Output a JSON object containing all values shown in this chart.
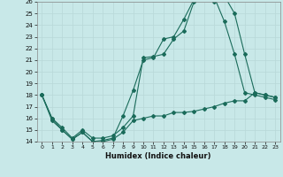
{
  "xlabel": "Humidex (Indice chaleur)",
  "xlim": [
    -0.5,
    23.5
  ],
  "ylim": [
    14,
    26
  ],
  "yticks": [
    14,
    15,
    16,
    17,
    18,
    19,
    20,
    21,
    22,
    23,
    24,
    25,
    26
  ],
  "xticks": [
    0,
    1,
    2,
    3,
    4,
    5,
    6,
    7,
    8,
    9,
    10,
    11,
    12,
    13,
    14,
    15,
    16,
    17,
    18,
    19,
    20,
    21,
    22,
    23
  ],
  "bg_color": "#c8e8e8",
  "line_color": "#1a6b5a",
  "grid_color": "#b8d8d8",
  "line1_x": [
    0,
    1,
    2,
    3,
    4,
    5,
    6,
    7,
    8,
    9,
    10,
    11,
    12,
    13,
    14,
    15,
    16,
    17,
    18,
    19,
    20,
    21,
    22,
    23
  ],
  "line1_y": [
    18.0,
    16.0,
    15.0,
    14.2,
    14.8,
    14.0,
    14.1,
    14.3,
    16.2,
    18.4,
    21.0,
    21.2,
    22.8,
    23.0,
    24.5,
    26.2,
    26.2,
    26.0,
    26.5,
    25.0,
    21.5,
    18.2,
    18.0,
    17.8
  ],
  "line2_x": [
    0,
    1,
    2,
    3,
    4,
    5,
    6,
    7,
    8,
    9,
    10,
    11,
    12,
    13,
    14,
    15,
    16,
    17,
    18,
    19,
    20,
    21,
    22,
    23
  ],
  "line2_y": [
    18.0,
    16.0,
    15.2,
    14.3,
    15.0,
    14.3,
    14.3,
    14.5,
    15.2,
    16.2,
    21.2,
    21.3,
    21.5,
    22.8,
    23.5,
    26.0,
    26.2,
    26.4,
    24.3,
    21.5,
    18.2,
    18.0,
    17.8,
    17.6
  ],
  "line3_x": [
    0,
    1,
    2,
    3,
    4,
    5,
    6,
    7,
    8,
    9,
    10,
    11,
    12,
    13,
    14,
    15,
    16,
    17,
    18,
    19,
    20,
    21,
    22,
    23
  ],
  "line3_y": [
    18.0,
    15.8,
    15.0,
    14.2,
    14.8,
    14.0,
    14.0,
    14.2,
    14.8,
    15.8,
    16.0,
    16.2,
    16.2,
    16.5,
    16.5,
    16.6,
    16.8,
    17.0,
    17.3,
    17.5,
    17.5,
    18.2,
    18.0,
    17.8
  ]
}
